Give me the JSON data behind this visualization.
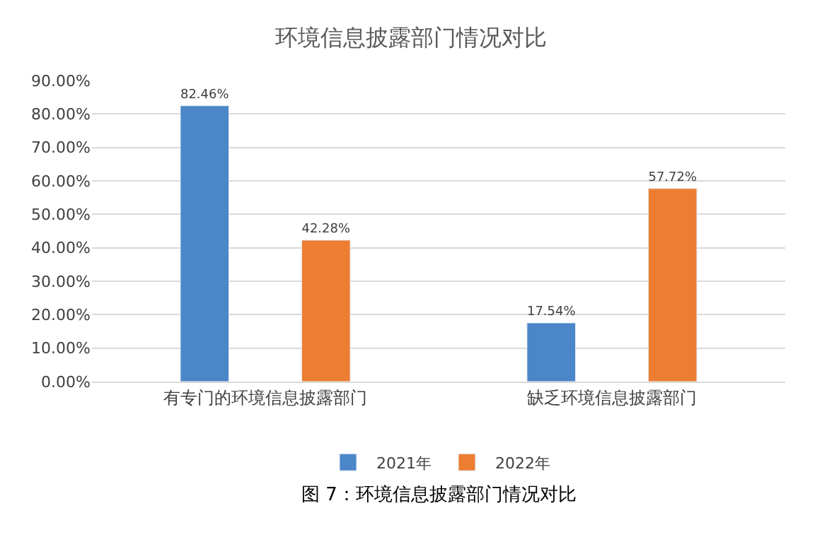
{
  "chart_data": {
    "type": "bar",
    "title": "环境信息披露部门情况对比",
    "categories": [
      "有专门的环境信息披露部门",
      "缺乏环境信息披露部门"
    ],
    "series": [
      {
        "name": "2021年",
        "color": "#4a86c8",
        "values": [
          82.46,
          17.54
        ],
        "value_labels": [
          "82.46%",
          "17.54%"
        ]
      },
      {
        "name": "2022年",
        "color": "#ed7d31",
        "values": [
          42.28,
          57.72
        ],
        "value_labels": [
          "42.28%",
          "57.72%"
        ]
      }
    ],
    "ylim": [
      0,
      90
    ],
    "yticks": [
      {
        "value": 0,
        "label": "0.00%"
      },
      {
        "value": 10,
        "label": "10.00%"
      },
      {
        "value": 20,
        "label": "20.00%"
      },
      {
        "value": 30,
        "label": "30.00%"
      },
      {
        "value": 40,
        "label": "40.00%"
      },
      {
        "value": 50,
        "label": "50.00%"
      },
      {
        "value": 60,
        "label": "60.00%"
      },
      {
        "value": 70,
        "label": "70.00%"
      },
      {
        "value": 80,
        "label": "80.00%"
      },
      {
        "value": 90,
        "label": "90.00%"
      }
    ],
    "grid": "y",
    "legend": "bottom",
    "annotations": [
      "图 7：环境信息披露部门情况对比"
    ]
  }
}
